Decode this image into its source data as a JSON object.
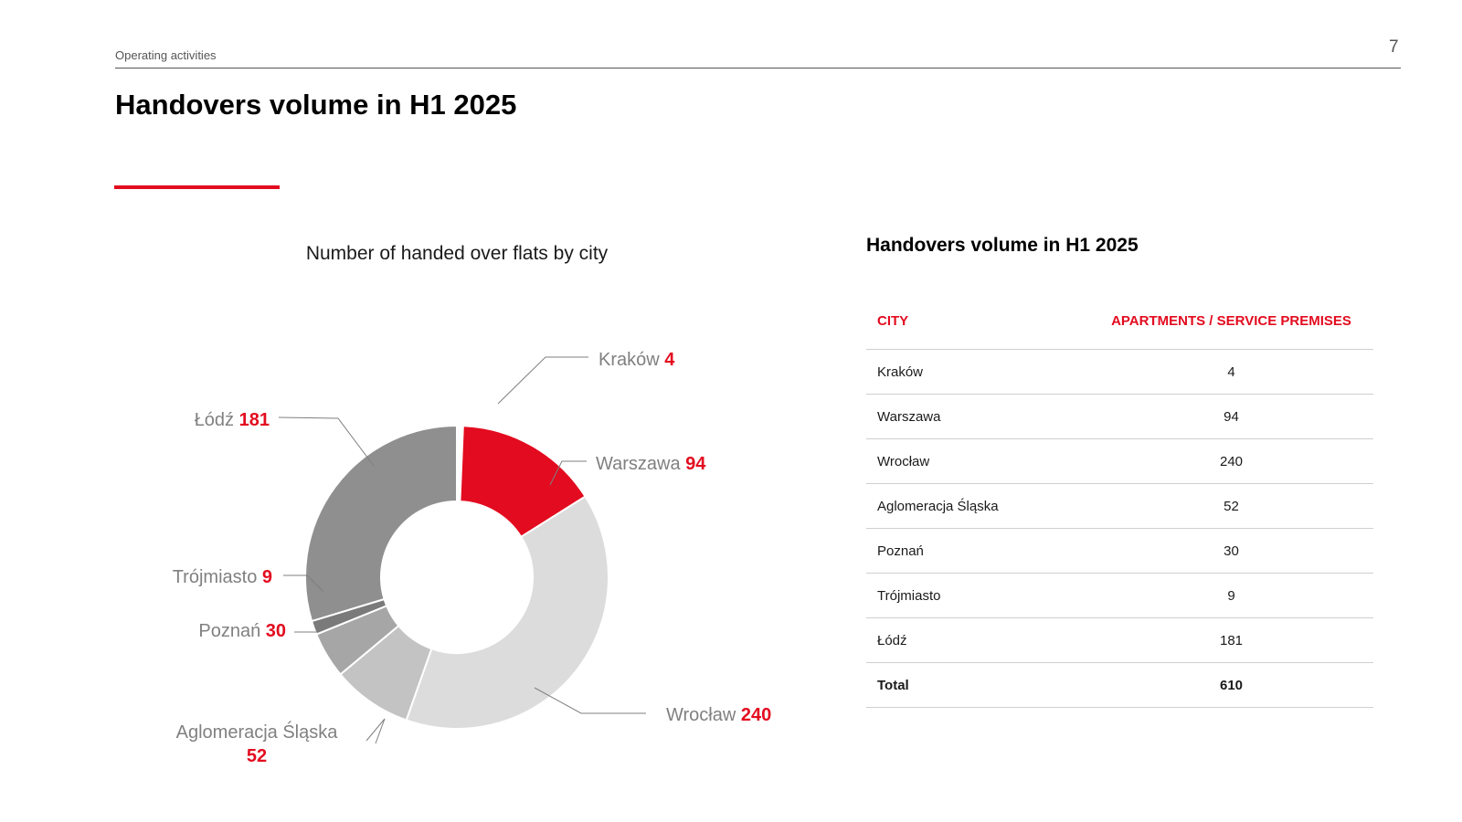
{
  "header": {
    "section_label": "Operating activities",
    "page_number": "7",
    "title": "Handovers volume in H1 2025"
  },
  "colors": {
    "accent": "#e30b1f",
    "slices": [
      "#ffffff",
      "#e30b1f",
      "#dcdcdc",
      "#c3c3c3",
      "#a6a6a6",
      "#7a7a7a",
      "#8f8f8f"
    ],
    "leader": "#7f7f7f"
  },
  "chart_data": {
    "type": "pie",
    "title": "Number of handed over flats by city",
    "donut": true,
    "labels": [
      "Kraków",
      "Warszawa",
      "Wrocław",
      "Aglomeracja Śląska",
      "Poznań",
      "Trójmiasto",
      "Łódź"
    ],
    "values": [
      4,
      94,
      240,
      52,
      30,
      9,
      181
    ],
    "data_labels": [
      "4",
      "94",
      "240",
      "52",
      "30",
      "9",
      "181"
    ]
  },
  "table": {
    "title": "Handovers volume in H1 2025",
    "headers": [
      "CITY",
      "APARTMENTS / SERVICE PREMISES"
    ],
    "rows": [
      [
        "Kraków",
        "4"
      ],
      [
        "Warszawa",
        "94"
      ],
      [
        "Wrocław",
        "240"
      ],
      [
        "Aglomeracja Śląska",
        "52"
      ],
      [
        "Poznań",
        "30"
      ],
      [
        "Trójmiasto",
        "9"
      ],
      [
        "Łódź",
        "181"
      ]
    ],
    "total": [
      "Total",
      "610"
    ]
  }
}
